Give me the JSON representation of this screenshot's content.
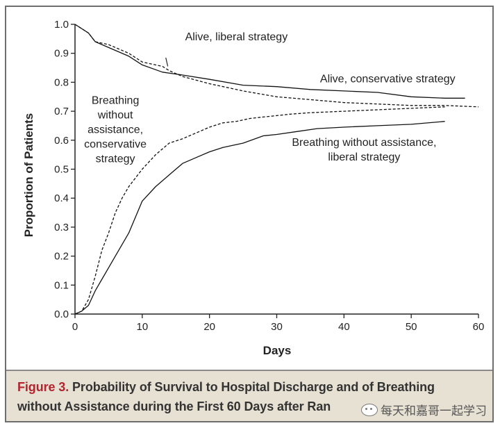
{
  "chart_data": {
    "type": "line",
    "xlabel": "Days",
    "ylabel": "Proportion of Patients",
    "xlim": [
      0,
      60
    ],
    "ylim": [
      0,
      1.0
    ],
    "x_ticks": [
      "0",
      "10",
      "20",
      "30",
      "40",
      "50",
      "60"
    ],
    "y_ticks": [
      "0.0",
      "0.1",
      "0.2",
      "0.3",
      "0.4",
      "0.5",
      "0.6",
      "0.7",
      "0.8",
      "0.9",
      "1.0"
    ],
    "grid": false,
    "series": [
      {
        "name": "Alive, conservative strategy",
        "style": "solid",
        "x": [
          0,
          2,
          3,
          5,
          8,
          10,
          13,
          16,
          20,
          25,
          30,
          35,
          40,
          45,
          50,
          55,
          58
        ],
        "y": [
          1.0,
          0.97,
          0.94,
          0.92,
          0.89,
          0.86,
          0.835,
          0.825,
          0.81,
          0.79,
          0.785,
          0.775,
          0.77,
          0.765,
          0.75,
          0.745,
          0.745
        ]
      },
      {
        "name": "Alive, liberal strategy",
        "style": "dashed",
        "x": [
          0,
          2,
          3,
          5,
          8,
          10,
          13,
          14,
          16,
          20,
          25,
          30,
          35,
          40,
          45,
          50,
          55,
          60
        ],
        "y": [
          1.0,
          0.97,
          0.94,
          0.93,
          0.9,
          0.87,
          0.855,
          0.84,
          0.82,
          0.795,
          0.77,
          0.75,
          0.74,
          0.73,
          0.725,
          0.72,
          0.72,
          0.715
        ]
      },
      {
        "name": "Breathing without assistance, conservative strategy",
        "style": "dashed",
        "x": [
          0,
          1,
          2,
          3,
          4,
          5,
          6,
          7,
          8,
          10,
          12,
          14,
          16,
          18,
          20,
          22,
          24,
          26,
          28,
          30,
          32,
          35,
          40,
          45,
          50,
          55
        ],
        "y": [
          0.0,
          0.01,
          0.05,
          0.13,
          0.22,
          0.28,
          0.35,
          0.4,
          0.44,
          0.5,
          0.55,
          0.59,
          0.605,
          0.625,
          0.645,
          0.66,
          0.665,
          0.675,
          0.68,
          0.685,
          0.69,
          0.695,
          0.7,
          0.705,
          0.71,
          0.715
        ]
      },
      {
        "name": "Breathing without assistance, liberal strategy",
        "style": "solid",
        "x": [
          0,
          1,
          2,
          3,
          4,
          5,
          6,
          7,
          8,
          10,
          12,
          14,
          16,
          18,
          20,
          22,
          25,
          28,
          30,
          33,
          36,
          40,
          45,
          50,
          55
        ],
        "y": [
          0.0,
          0.01,
          0.03,
          0.08,
          0.12,
          0.16,
          0.2,
          0.24,
          0.28,
          0.39,
          0.44,
          0.48,
          0.52,
          0.54,
          0.56,
          0.575,
          0.59,
          0.615,
          0.62,
          0.63,
          0.64,
          0.645,
          0.65,
          0.655,
          0.665
        ]
      }
    ],
    "annotations": [
      {
        "lines": [
          "Alive, liberal strategy"
        ],
        "x": 24,
        "y": 0.945,
        "anchor": "middle",
        "pointer": {
          "x1": 13.5,
          "y1": 0.885,
          "x2": 13.8,
          "y2": 0.855
        }
      },
      {
        "lines": [
          "Alive, conservative strategy"
        ],
        "x": 46.5,
        "y": 0.8,
        "anchor": "middle"
      },
      {
        "lines": [
          "Breathing",
          "without",
          "assistance,",
          "conservative",
          "strategy"
        ],
        "x": 6,
        "y": 0.725,
        "anchor": "middle"
      },
      {
        "lines": [
          "Breathing without assistance,",
          "liberal strategy"
        ],
        "x": 43,
        "y": 0.58,
        "anchor": "middle"
      }
    ]
  },
  "caption": {
    "figure_label": "Figure 3.",
    "line1_text": " Probability of Survival to Hospital Discharge and of Breathing",
    "line2_text": "without Assistance during the First 60 Days after Ran",
    "watermark": "每天和嘉哥一起学习"
  }
}
